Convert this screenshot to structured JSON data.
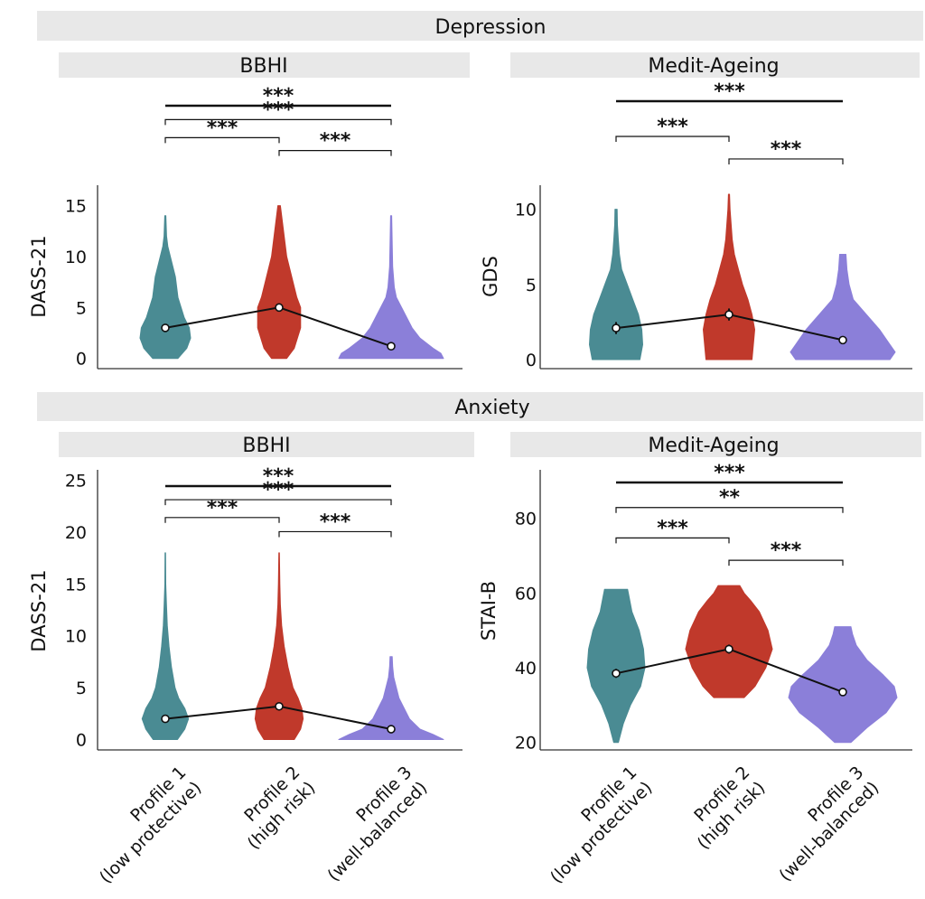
{
  "figure": {
    "colors": [
      "#4a8b93",
      "#c0392b",
      "#8b7fd9"
    ],
    "categories": [
      [
        "Profile 1",
        "(low protective)"
      ],
      [
        "Profile 2",
        "(high risk)"
      ],
      [
        "Profile 3",
        "(well-balanced)"
      ]
    ],
    "section_titles": [
      "Depression",
      "Anxiety"
    ]
  },
  "chart_data": [
    {
      "type": "violin",
      "section": "Depression",
      "title": "BBHI",
      "ylabel": "DASS-21",
      "ylim": [
        -1,
        17
      ],
      "yticks": [
        0,
        5,
        10,
        15
      ],
      "categories": [
        "Profile 1 (low protective)",
        "Profile 2 (high risk)",
        "Profile 3 (well-balanced)"
      ],
      "means": [
        3.0,
        5.0,
        1.2
      ],
      "ci_error": [
        0.15,
        0.15,
        0.1
      ],
      "distributions": [
        {
          "profile": "Profile 1",
          "min": 0,
          "max": 14,
          "points": [
            [
              0,
              0.5
            ],
            [
              1,
              0.85
            ],
            [
              2,
              1.0
            ],
            [
              3,
              0.95
            ],
            [
              4,
              0.75
            ],
            [
              6,
              0.5
            ],
            [
              8,
              0.4
            ],
            [
              9,
              0.3
            ],
            [
              11,
              0.1
            ],
            [
              12,
              0.05
            ],
            [
              14,
              0.02
            ]
          ]
        },
        {
          "profile": "Profile 2",
          "min": 0,
          "max": 15,
          "points": [
            [
              0,
              0.3
            ],
            [
              1,
              0.6
            ],
            [
              3,
              0.85
            ],
            [
              5,
              0.85
            ],
            [
              6,
              0.7
            ],
            [
              8,
              0.5
            ],
            [
              10,
              0.3
            ],
            [
              12,
              0.2
            ],
            [
              14,
              0.1
            ],
            [
              15,
              0.05
            ]
          ]
        },
        {
          "profile": "Profile 3",
          "min": 0,
          "max": 14,
          "points": [
            [
              0,
              1.0
            ],
            [
              0.5,
              0.95
            ],
            [
              1,
              0.8
            ],
            [
              2,
              0.55
            ],
            [
              3,
              0.4
            ],
            [
              4,
              0.3
            ],
            [
              5,
              0.2
            ],
            [
              6,
              0.1
            ],
            [
              7,
              0.06
            ],
            [
              9,
              0.03
            ],
            [
              14,
              0.01
            ]
          ]
        }
      ],
      "significance": [
        {
          "label": "***",
          "from": 0,
          "to": 2,
          "y": 1.0,
          "thick": true
        },
        {
          "label": "***",
          "from": 0,
          "to": 2,
          "y": 0.73,
          "thick": false
        },
        {
          "label": "***",
          "from": 0,
          "to": 1,
          "y": 0.38,
          "thick": false
        },
        {
          "label": "***",
          "from": 1,
          "to": 2,
          "y": 0.13,
          "thick": false
        }
      ]
    },
    {
      "type": "violin",
      "section": "Depression",
      "title": "Medit-Ageing",
      "ylabel": "GDS",
      "ylim": [
        -0.6,
        11.6
      ],
      "yticks": [
        0,
        5,
        10
      ],
      "categories": [
        "Profile 1 (low protective)",
        "Profile 2 (high risk)",
        "Profile 3 (well-balanced)"
      ],
      "means": [
        2.1,
        3.0,
        1.3
      ],
      "ci_error": [
        0.4,
        0.4,
        0.15
      ],
      "distributions": [
        {
          "profile": "Profile 1",
          "min": 0,
          "max": 10,
          "points": [
            [
              0,
              0.85
            ],
            [
              1,
              0.95
            ],
            [
              2,
              0.92
            ],
            [
              3,
              0.8
            ],
            [
              4,
              0.6
            ],
            [
              5,
              0.4
            ],
            [
              6,
              0.2
            ],
            [
              7,
              0.12
            ],
            [
              8,
              0.08
            ],
            [
              9,
              0.05
            ],
            [
              10,
              0.04
            ]
          ]
        },
        {
          "profile": "Profile 2",
          "min": 0,
          "max": 11,
          "points": [
            [
              0,
              0.85
            ],
            [
              1,
              0.9
            ],
            [
              2,
              0.95
            ],
            [
              3,
              0.85
            ],
            [
              4,
              0.7
            ],
            [
              5,
              0.5
            ],
            [
              6,
              0.35
            ],
            [
              7,
              0.2
            ],
            [
              8,
              0.12
            ],
            [
              9,
              0.08
            ],
            [
              10,
              0.04
            ],
            [
              11,
              0.02
            ]
          ]
        },
        {
          "profile": "Profile 3",
          "min": 0,
          "max": 7,
          "points": [
            [
              0,
              0.9
            ],
            [
              0.5,
              1.0
            ],
            [
              1,
              0.9
            ],
            [
              2,
              0.7
            ],
            [
              3,
              0.45
            ],
            [
              4,
              0.2
            ],
            [
              5,
              0.12
            ],
            [
              6,
              0.08
            ],
            [
              7,
              0.06
            ]
          ]
        }
      ],
      "significance": [
        {
          "label": "***",
          "from": 0,
          "to": 2,
          "y": 1.0,
          "thick": true
        },
        {
          "label": "***",
          "from": 0,
          "to": 1,
          "y": 0.5,
          "thick": false
        },
        {
          "label": "***",
          "from": 1,
          "to": 2,
          "y": 0.18,
          "thick": false
        }
      ]
    },
    {
      "type": "violin",
      "section": "Anxiety",
      "title": "BBHI",
      "ylabel": "DASS-21",
      "ylim": [
        -1,
        26
      ],
      "yticks": [
        0,
        5,
        10,
        15,
        20,
        25
      ],
      "categories": [
        "Profile 1 (low protective)",
        "Profile 2 (high risk)",
        "Profile 3 (well-balanced)"
      ],
      "means": [
        2.0,
        3.2,
        1.0
      ],
      "ci_error": [
        0.15,
        0.15,
        0.1
      ],
      "distributions": [
        {
          "profile": "Profile 1",
          "min": 0,
          "max": 18,
          "points": [
            [
              0,
              0.5
            ],
            [
              1,
              0.8
            ],
            [
              2,
              0.95
            ],
            [
              3,
              0.8
            ],
            [
              4,
              0.55
            ],
            [
              5,
              0.4
            ],
            [
              7,
              0.25
            ],
            [
              9,
              0.15
            ],
            [
              11,
              0.08
            ],
            [
              13,
              0.05
            ],
            [
              15,
              0.02
            ],
            [
              18,
              0.01
            ]
          ]
        },
        {
          "profile": "Profile 2",
          "min": 0,
          "max": 18,
          "points": [
            [
              0,
              0.6
            ],
            [
              1,
              0.85
            ],
            [
              2,
              0.95
            ],
            [
              3,
              0.9
            ],
            [
              4,
              0.75
            ],
            [
              5,
              0.55
            ],
            [
              7,
              0.35
            ],
            [
              9,
              0.2
            ],
            [
              11,
              0.1
            ],
            [
              13,
              0.05
            ],
            [
              15,
              0.03
            ],
            [
              18,
              0.01
            ]
          ]
        },
        {
          "profile": "Profile 3",
          "min": 0,
          "max": 8,
          "points": [
            [
              0,
              1.0
            ],
            [
              0.5,
              0.8
            ],
            [
              1,
              0.55
            ],
            [
              1.5,
              0.45
            ],
            [
              2,
              0.35
            ],
            [
              3,
              0.25
            ],
            [
              4,
              0.15
            ],
            [
              5,
              0.1
            ],
            [
              6,
              0.05
            ],
            [
              7,
              0.03
            ],
            [
              8,
              0.02
            ]
          ]
        }
      ],
      "significance": [
        {
          "label": "***",
          "from": 0,
          "to": 2,
          "y": 1.0,
          "thick": true
        },
        {
          "label": "***",
          "from": 0,
          "to": 2,
          "y": 0.74,
          "thick": false
        },
        {
          "label": "***",
          "from": 0,
          "to": 1,
          "y": 0.4,
          "thick": false
        },
        {
          "label": "***",
          "from": 1,
          "to": 2,
          "y": 0.13,
          "thick": false
        }
      ]
    },
    {
      "type": "violin",
      "section": "Anxiety",
      "title": "Medit-Ageing",
      "ylabel": "STAI-B",
      "ylim": [
        18,
        93
      ],
      "yticks": [
        20,
        40,
        60,
        80
      ],
      "categories": [
        "Profile 1 (low protective)",
        "Profile 2 (high risk)",
        "Profile 3 (well-balanced)"
      ],
      "means": [
        38.5,
        45.0,
        33.5
      ],
      "ci_error": [
        1.2,
        1.2,
        0.5
      ],
      "distributions": [
        {
          "profile": "Profile 1",
          "min": 20,
          "max": 61,
          "points": [
            [
              20,
              0.08
            ],
            [
              25,
              0.25
            ],
            [
              30,
              0.5
            ],
            [
              35,
              0.85
            ],
            [
              40,
              1.0
            ],
            [
              45,
              0.95
            ],
            [
              50,
              0.8
            ],
            [
              55,
              0.55
            ],
            [
              59,
              0.45
            ],
            [
              61,
              0.4
            ]
          ]
        },
        {
          "profile": "Profile 2",
          "min": 32,
          "max": 62,
          "points": [
            [
              32,
              0.35
            ],
            [
              35,
              0.6
            ],
            [
              40,
              0.85
            ],
            [
              45,
              1.0
            ],
            [
              50,
              0.9
            ],
            [
              55,
              0.7
            ],
            [
              58,
              0.5
            ],
            [
              60,
              0.35
            ],
            [
              62,
              0.25
            ]
          ]
        },
        {
          "profile": "Profile 3",
          "min": 20,
          "max": 51,
          "points": [
            [
              20,
              0.15
            ],
            [
              24,
              0.45
            ],
            [
              28,
              0.8
            ],
            [
              32,
              1.0
            ],
            [
              35,
              0.95
            ],
            [
              38,
              0.75
            ],
            [
              42,
              0.45
            ],
            [
              46,
              0.25
            ],
            [
              49,
              0.18
            ],
            [
              51,
              0.15
            ]
          ]
        }
      ],
      "significance": [
        {
          "label": "***",
          "from": 0,
          "to": 2,
          "y": 1.0,
          "thick": true
        },
        {
          "label": "**",
          "from": 0,
          "to": 2,
          "y": 0.72,
          "thick": false
        },
        {
          "label": "***",
          "from": 0,
          "to": 1,
          "y": 0.38,
          "thick": false
        },
        {
          "label": "***",
          "from": 1,
          "to": 2,
          "y": 0.13,
          "thick": false
        }
      ]
    }
  ]
}
